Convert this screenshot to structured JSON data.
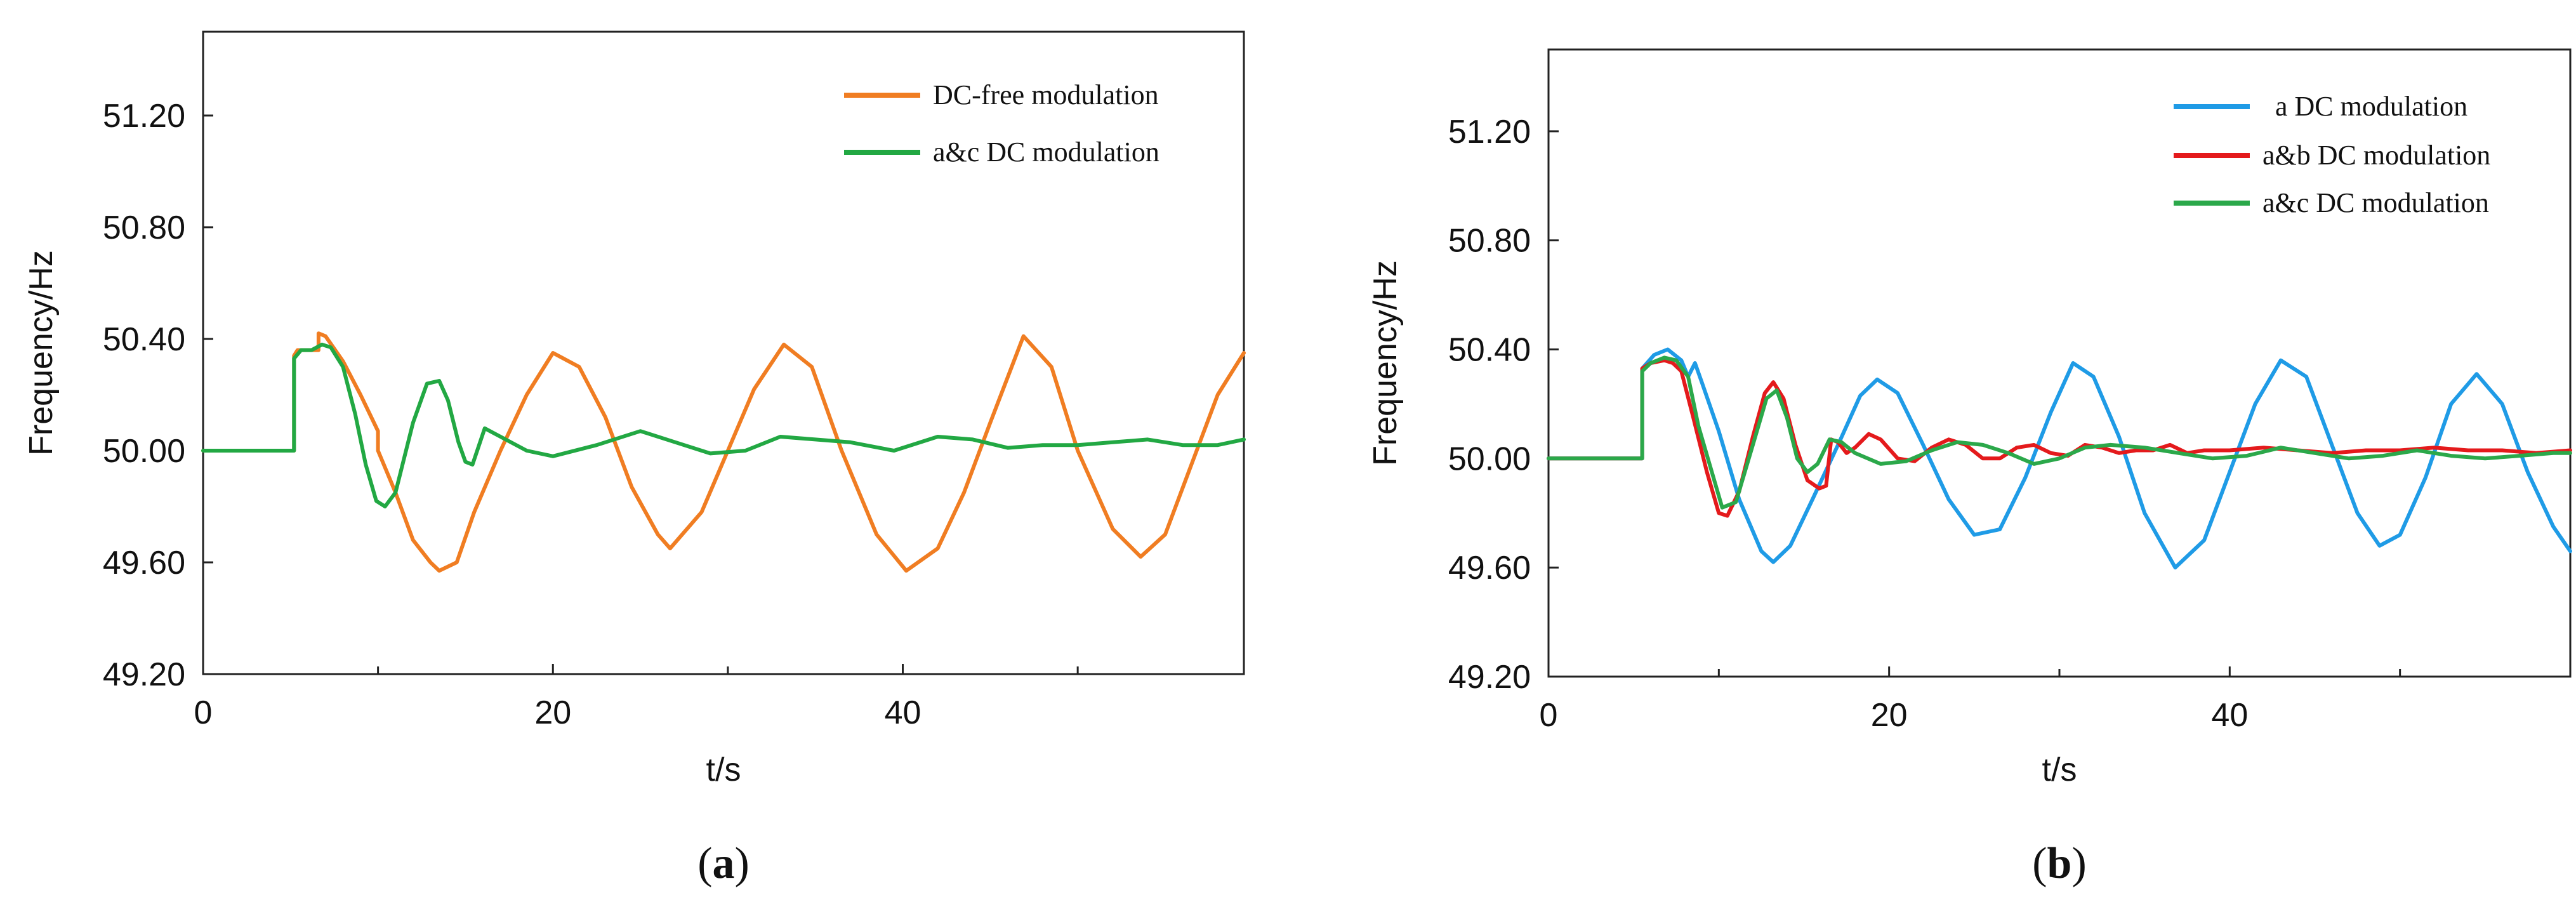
{
  "captions": [
    {
      "open": "(",
      "letter": "a",
      "close": ")"
    },
    {
      "open": "(",
      "letter": "b",
      "close": ")"
    }
  ],
  "chart_data": [
    {
      "type": "line",
      "panel": "a",
      "title": "",
      "xlabel": "t/s",
      "ylabel": "Frequency/Hz",
      "xlim": [
        0,
        59.5
      ],
      "ylim": [
        49.2,
        51.5
      ],
      "xticks": [
        0,
        20,
        40
      ],
      "xtick_labels": [
        "0",
        "20",
        "40"
      ],
      "xminor": [
        10,
        30,
        50
      ],
      "yticks": [
        49.2,
        49.6,
        50.0,
        50.4,
        50.8,
        51.2
      ],
      "ytick_labels": [
        "49.20",
        "49.60",
        "50.00",
        "50.40",
        "50.80",
        "51.20"
      ],
      "grid": false,
      "legend_position": "top-right",
      "series": [
        {
          "name": "DC-free modulation",
          "color": "#f07d22",
          "x": [
            0,
            5.2,
            5.2,
            5.4,
            6.0,
            6.6,
            6.6,
            7.0,
            8.0,
            9.0,
            10.0,
            10.0,
            11.0,
            12.0,
            13.0,
            13.5,
            14.5,
            15.5,
            17.0,
            18.5,
            20.0,
            21.5,
            23.0,
            24.5,
            26.0,
            26.7,
            28.5,
            30.0,
            31.5,
            33.2,
            34.8,
            36.5,
            38.5,
            40.2,
            42.0,
            43.5,
            45.0,
            46.9,
            48.5,
            50.0,
            52.0,
            53.6,
            55.0,
            56.5,
            58.0,
            59.5
          ],
          "y": [
            50.0,
            50.0,
            50.34,
            50.36,
            50.36,
            50.36,
            50.42,
            50.41,
            50.32,
            50.2,
            50.07,
            50.0,
            49.85,
            49.68,
            49.6,
            49.57,
            49.6,
            49.78,
            50.0,
            50.2,
            50.35,
            50.3,
            50.12,
            49.87,
            49.7,
            49.65,
            49.78,
            50.0,
            50.22,
            50.38,
            50.3,
            50.0,
            49.7,
            49.57,
            49.65,
            49.85,
            50.1,
            50.41,
            50.3,
            50.0,
            49.72,
            49.62,
            49.7,
            49.95,
            50.2,
            50.35
          ]
        },
        {
          "name": "a&c DC modulation",
          "color": "#22a843",
          "x": [
            0,
            5.2,
            5.2,
            5.6,
            6.2,
            6.8,
            7.3,
            8.0,
            8.7,
            9.3,
            9.9,
            10.4,
            11.0,
            12.0,
            12.8,
            13.5,
            14.0,
            14.6,
            15.0,
            15.4,
            16.1,
            17.0,
            18.5,
            20.0,
            22.5,
            25.0,
            27.0,
            29.0,
            31.0,
            33.0,
            35.0,
            37.0,
            39.5,
            42.0,
            44.0,
            46.0,
            48.0,
            50.0,
            52.0,
            54.0,
            56.0,
            58.0,
            59.5
          ],
          "y": [
            50.0,
            50.0,
            50.33,
            50.36,
            50.36,
            50.38,
            50.37,
            50.3,
            50.13,
            49.95,
            49.82,
            49.8,
            49.85,
            50.1,
            50.24,
            50.25,
            50.18,
            50.03,
            49.96,
            49.95,
            50.08,
            50.05,
            50.0,
            49.98,
            50.02,
            50.07,
            50.03,
            49.99,
            50.0,
            50.05,
            50.04,
            50.03,
            50.0,
            50.05,
            50.04,
            50.01,
            50.02,
            50.02,
            50.03,
            50.04,
            50.02,
            50.02,
            50.04
          ]
        }
      ]
    },
    {
      "type": "line",
      "panel": "b",
      "title": "",
      "xlabel": "t/s",
      "ylabel": "Frequency/Hz",
      "xlim": [
        0,
        60
      ],
      "ylim": [
        49.2,
        51.5
      ],
      "xticks": [
        0,
        20,
        40
      ],
      "xtick_labels": [
        "0",
        "20",
        "40"
      ],
      "xminor": [
        10,
        30,
        50
      ],
      "yticks": [
        49.2,
        49.6,
        50.0,
        50.4,
        50.8,
        51.2
      ],
      "ytick_labels": [
        "49.20",
        "49.60",
        "50.00",
        "50.40",
        "50.80",
        "51.20"
      ],
      "grid": false,
      "legend_position": "top-right",
      "series": [
        {
          "name": "a DC modulation",
          "color": "#1f9be6",
          "x": [
            0,
            5.5,
            5.5,
            6.2,
            7.0,
            7.8,
            8.2,
            8.6,
            9.0,
            10.0,
            11.2,
            12.5,
            13.2,
            14.2,
            15.5,
            17.0,
            18.3,
            19.3,
            20.5,
            22.0,
            23.5,
            25.0,
            26.5,
            28.0,
            29.5,
            30.8,
            32.0,
            33.5,
            35.0,
            36.8,
            38.5,
            40.0,
            41.5,
            43.0,
            44.5,
            46.0,
            47.5,
            48.8,
            50.0,
            51.5,
            53.0,
            54.5,
            56.0,
            57.5,
            59.0,
            60.0
          ],
          "y": [
            50.0,
            50.0,
            50.33,
            50.38,
            50.4,
            50.36,
            50.3,
            50.35,
            50.28,
            50.1,
            49.85,
            49.66,
            49.62,
            49.68,
            49.85,
            50.05,
            50.23,
            50.29,
            50.24,
            50.05,
            49.85,
            49.72,
            49.74,
            49.93,
            50.17,
            50.35,
            50.3,
            50.08,
            49.8,
            49.6,
            49.7,
            49.95,
            50.2,
            50.36,
            50.3,
            50.05,
            49.8,
            49.68,
            49.72,
            49.93,
            50.2,
            50.31,
            50.2,
            49.95,
            49.75,
            49.66
          ]
        },
        {
          "name": "a&b DC modulation",
          "color": "#e41a1c",
          "x": [
            0,
            5.5,
            5.5,
            6.0,
            6.8,
            7.3,
            7.8,
            8.5,
            9.3,
            10.0,
            10.5,
            11.2,
            12.0,
            12.7,
            13.2,
            13.8,
            14.5,
            15.2,
            15.9,
            16.3,
            16.6,
            17.0,
            17.5,
            18.0,
            18.8,
            19.5,
            20.5,
            21.5,
            22.5,
            23.5,
            24.5,
            25.5,
            26.5,
            27.5,
            28.5,
            29.5,
            30.5,
            31.5,
            32.5,
            33.5,
            34.5,
            35.5,
            36.5,
            37.5,
            38.5,
            40.0,
            42.0,
            44.0,
            46.0,
            48.0,
            50.0,
            52.0,
            54.0,
            56.0,
            58.0,
            60.0
          ],
          "y": [
            50.0,
            50.0,
            50.33,
            50.35,
            50.36,
            50.35,
            50.32,
            50.15,
            49.95,
            49.8,
            49.79,
            49.88,
            50.08,
            50.24,
            50.28,
            50.22,
            50.05,
            49.92,
            49.89,
            49.9,
            50.07,
            50.06,
            50.02,
            50.04,
            50.09,
            50.07,
            50.0,
            49.99,
            50.04,
            50.07,
            50.05,
            50.0,
            50.0,
            50.04,
            50.05,
            50.02,
            50.01,
            50.05,
            50.04,
            50.02,
            50.03,
            50.03,
            50.05,
            50.02,
            50.03,
            50.03,
            50.04,
            50.03,
            50.02,
            50.03,
            50.03,
            50.04,
            50.03,
            50.03,
            50.02,
            50.03
          ]
        },
        {
          "name": "a&c DC modulation",
          "color": "#2ba84a",
          "x": [
            0,
            5.5,
            5.5,
            6.0,
            6.8,
            7.5,
            8.2,
            8.8,
            9.5,
            10.2,
            11.0,
            12.0,
            12.8,
            13.4,
            14.0,
            14.6,
            15.2,
            15.8,
            16.5,
            17.2,
            18.0,
            19.5,
            21.0,
            22.5,
            24.0,
            25.5,
            27.0,
            28.5,
            30.0,
            31.5,
            33.0,
            35.0,
            37.0,
            39.0,
            41.0,
            43.0,
            45.0,
            47.0,
            49.0,
            51.0,
            53.0,
            55.0,
            57.0,
            59.0,
            60.0
          ],
          "y": [
            50.0,
            50.0,
            50.32,
            50.35,
            50.37,
            50.36,
            50.3,
            50.12,
            49.97,
            49.82,
            49.84,
            50.05,
            50.22,
            50.25,
            50.15,
            50.0,
            49.95,
            49.98,
            50.07,
            50.06,
            50.02,
            49.98,
            49.99,
            50.03,
            50.06,
            50.05,
            50.02,
            49.98,
            50.0,
            50.04,
            50.05,
            50.04,
            50.02,
            50.0,
            50.01,
            50.04,
            50.02,
            50.0,
            50.01,
            50.03,
            50.01,
            50.0,
            50.01,
            50.02,
            50.02
          ]
        }
      ]
    }
  ]
}
